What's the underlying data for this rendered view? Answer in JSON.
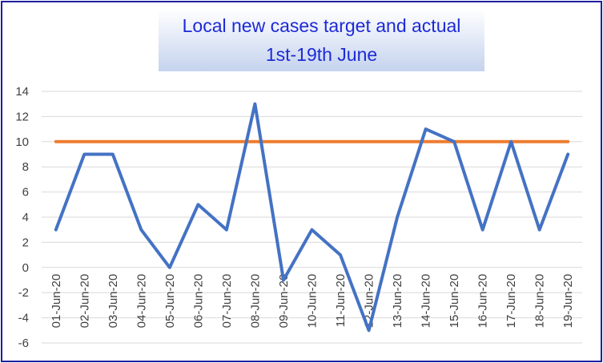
{
  "chart_data": {
    "type": "line",
    "title": "Local new cases target and actual",
    "subtitle": "1st-19th June",
    "xlabel": "",
    "ylabel": "",
    "ylim": [
      -6,
      14
    ],
    "yticks": [
      14,
      12,
      10,
      8,
      6,
      4,
      2,
      0,
      -2,
      -4,
      -6
    ],
    "grid": true,
    "categories": [
      "01-Jun-20",
      "02-Jun-20",
      "03-Jun-20",
      "04-Jun-20",
      "05-Jun-20",
      "06-Jun-20",
      "07-Jun-20",
      "08-Jun-20",
      "09-Jun-20",
      "10-Jun-20",
      "11-Jun-20",
      "12-Jun-20",
      "13-Jun-20",
      "14-Jun-20",
      "15-Jun-20",
      "16-Jun-20",
      "17-Jun-20",
      "18-Jun-20",
      "19-Jun-20"
    ],
    "series": [
      {
        "color": "#4472c4",
        "values": [
          3,
          9,
          9,
          3,
          0,
          5,
          3,
          13,
          -1,
          3,
          1,
          -5,
          4,
          11,
          10,
          3,
          10,
          3,
          9
        ]
      },
      {
        "color": "#ed7d31",
        "values": [
          10,
          10,
          10,
          10,
          10,
          10,
          10,
          10,
          10,
          10,
          10,
          10,
          10,
          10,
          10,
          10,
          10,
          10,
          10
        ]
      }
    ]
  }
}
